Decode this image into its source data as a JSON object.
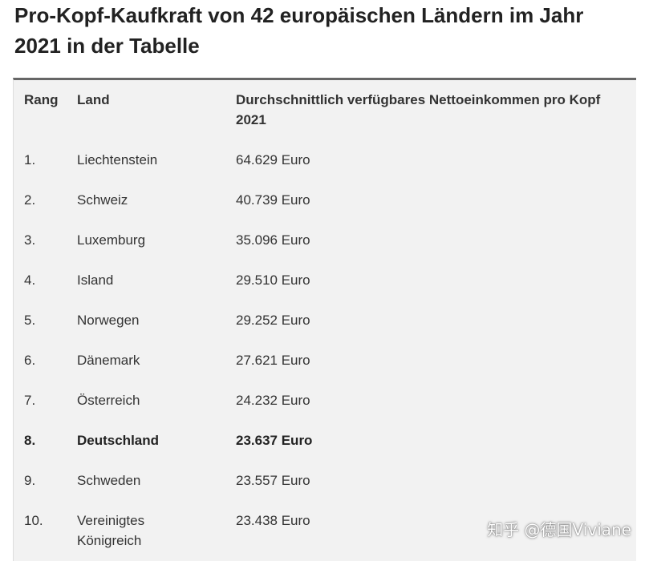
{
  "title": "Pro-Kopf-Kaufkraft von 42 europäischen Ländern im Jahr 2021 in der Tabelle",
  "table": {
    "headers": {
      "rang": "Rang",
      "land": "Land",
      "value_line1": "Durchschnittlich verfügbares Nettoeinkommen pro Kopf",
      "value_line2": "2021"
    },
    "rows": [
      {
        "rang": "1.",
        "land": "Liechtenstein",
        "land2": "",
        "value": "64.629 Euro",
        "highlight": false
      },
      {
        "rang": "2.",
        "land": "Schweiz",
        "land2": "",
        "value": "40.739 Euro",
        "highlight": false
      },
      {
        "rang": "3.",
        "land": "Luxemburg",
        "land2": "",
        "value": "35.096 Euro",
        "highlight": false
      },
      {
        "rang": "4.",
        "land": "Island",
        "land2": "",
        "value": "29.510 Euro",
        "highlight": false
      },
      {
        "rang": "5.",
        "land": "Norwegen",
        "land2": "",
        "value": "29.252 Euro",
        "highlight": false
      },
      {
        "rang": "6.",
        "land": "Dänemark",
        "land2": "",
        "value": "27.621 Euro",
        "highlight": false
      },
      {
        "rang": "7.",
        "land": "Österreich",
        "land2": "",
        "value": "24.232 Euro",
        "highlight": false
      },
      {
        "rang": "8.",
        "land": "Deutschland",
        "land2": "",
        "value": "23.637 Euro",
        "highlight": true
      },
      {
        "rang": "9.",
        "land": "Schweden",
        "land2": "",
        "value": "23.557 Euro",
        "highlight": false
      },
      {
        "rang": "10.",
        "land": "Vereinigtes",
        "land2": "Königreich",
        "value": "23.438 Euro",
        "highlight": false
      }
    ]
  },
  "watermark": "知乎 @德国Viviane"
}
